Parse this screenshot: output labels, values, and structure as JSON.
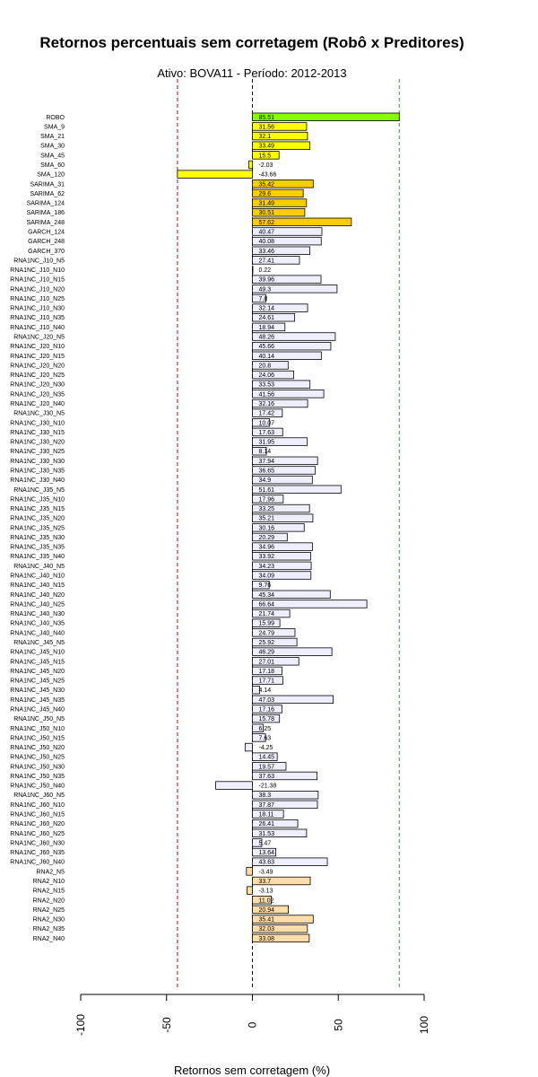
{
  "chart_data": {
    "type": "bar",
    "orientation": "horizontal",
    "title": "Retornos percentuais sem corretagem (Robô x Preditores)",
    "subtitle": "Ativo:  BOVA11  - Período: 2012-2013",
    "xlabel": "Retornos sem corretagem (%)",
    "xlim": [
      -100,
      100
    ],
    "xticks": [
      "-100",
      "-50",
      "0",
      "50",
      "100"
    ],
    "grid": false,
    "reference_lines": [
      {
        "x": -43.66,
        "color": "#cc0000",
        "style": "dashed"
      },
      {
        "x": 0,
        "color": "#000000",
        "style": "dashed"
      },
      {
        "x": 85.51,
        "color": "#00bb00",
        "style": "dashed"
      }
    ],
    "colors": {
      "robot": "#88ff00",
      "sma": "#ffff00",
      "sarima": "#ffcc00",
      "neutral": "#eeeeff",
      "rna2": "#ffddaa"
    },
    "bars": [
      {
        "label": "ROBO",
        "value": 85.51,
        "value_label": "85.51",
        "color": "#88ff00"
      },
      {
        "label": "SMA_9",
        "value": 31.56,
        "value_label": "31.56",
        "color": "#ffff00"
      },
      {
        "label": "SMA_21",
        "value": 32.1,
        "value_label": "32.1",
        "color": "#ffff00"
      },
      {
        "label": "SMA_30",
        "value": 33.49,
        "value_label": "33.49",
        "color": "#ffff00"
      },
      {
        "label": "SMA_45",
        "value": 15.5,
        "value_label": "15.5",
        "color": "#ffff00"
      },
      {
        "label": "SMA_60",
        "value": -2.03,
        "value_label": "-2.03",
        "color": "#ffff00"
      },
      {
        "label": "SMA_120",
        "value": -43.66,
        "value_label": "-43.66",
        "color": "#ffff00"
      },
      {
        "label": "SARIMA_31",
        "value": 35.42,
        "value_label": "35.42",
        "color": "#ffcc00"
      },
      {
        "label": "SARIMA_62",
        "value": 29.6,
        "value_label": "29.6",
        "color": "#ffcc00"
      },
      {
        "label": "SARIMA_124",
        "value": 31.49,
        "value_label": "31.49",
        "color": "#ffcc00"
      },
      {
        "label": "SARIMA_186",
        "value": 30.51,
        "value_label": "30.51",
        "color": "#ffcc00"
      },
      {
        "label": "SARIMA_248",
        "value": 57.62,
        "value_label": "57.62",
        "color": "#ffcc00"
      },
      {
        "label": "GARCH_124",
        "value": 40.47,
        "value_label": "40.47",
        "color": "#eeeeff"
      },
      {
        "label": "GARCH_248",
        "value": 40.08,
        "value_label": "40.08",
        "color": "#eeeeff"
      },
      {
        "label": "GARCH_370",
        "value": 33.46,
        "value_label": "33.46",
        "color": "#eeeeff"
      },
      {
        "label": "RNA1NC_J10_N5",
        "value": 27.41,
        "value_label": "27.41",
        "color": "#eeeeff"
      },
      {
        "label": "RNA1NC_J10_N10",
        "value": 0.22,
        "value_label": "0.22",
        "color": "#eeeeff"
      },
      {
        "label": "RNA1NC_J10_N15",
        "value": 39.96,
        "value_label": "39.96",
        "color": "#eeeeff"
      },
      {
        "label": "RNA1NC_J10_N20",
        "value": 49.3,
        "value_label": "49.3",
        "color": "#eeeeff"
      },
      {
        "label": "RNA1NC_J10_N25",
        "value": 7.8,
        "value_label": "7.8",
        "color": "#eeeeff"
      },
      {
        "label": "RNA1NC_J10_N30",
        "value": 32.14,
        "value_label": "32.14",
        "color": "#eeeeff"
      },
      {
        "label": "RNA1NC_J10_N35",
        "value": 24.61,
        "value_label": "24.61",
        "color": "#eeeeff"
      },
      {
        "label": "RNA1NC_J10_N40",
        "value": 18.94,
        "value_label": "18.94",
        "color": "#eeeeff"
      },
      {
        "label": "RNA1NC_J20_N5",
        "value": 48.26,
        "value_label": "48.26",
        "color": "#eeeeff"
      },
      {
        "label": "RNA1NC_J20_N10",
        "value": 45.66,
        "value_label": "45.66",
        "color": "#eeeeff"
      },
      {
        "label": "RNA1NC_J20_N15",
        "value": 40.14,
        "value_label": "40.14",
        "color": "#eeeeff"
      },
      {
        "label": "RNA1NC_J20_N20",
        "value": 20.8,
        "value_label": "20.8",
        "color": "#eeeeff"
      },
      {
        "label": "RNA1NC_J20_N25",
        "value": 24.06,
        "value_label": "24.06",
        "color": "#eeeeff"
      },
      {
        "label": "RNA1NC_J20_N30",
        "value": 33.53,
        "value_label": "33.53",
        "color": "#eeeeff"
      },
      {
        "label": "RNA1NC_J20_N35",
        "value": 41.56,
        "value_label": "41.56",
        "color": "#eeeeff"
      },
      {
        "label": "RNA1NC_J20_N40",
        "value": 32.16,
        "value_label": "32.16",
        "color": "#eeeeff"
      },
      {
        "label": "RNA1NC_J30_N5",
        "value": 17.42,
        "value_label": "17.42",
        "color": "#eeeeff"
      },
      {
        "label": "RNA1NC_J30_N10",
        "value": 10.07,
        "value_label": "10.07",
        "color": "#eeeeff"
      },
      {
        "label": "RNA1NC_J30_N15",
        "value": 17.63,
        "value_label": "17.63",
        "color": "#eeeeff"
      },
      {
        "label": "RNA1NC_J30_N20",
        "value": 31.95,
        "value_label": "31.95",
        "color": "#eeeeff"
      },
      {
        "label": "RNA1NC_J30_N25",
        "value": 8.14,
        "value_label": "8.14",
        "color": "#eeeeff"
      },
      {
        "label": "RNA1NC_J30_N30",
        "value": 37.94,
        "value_label": "37.94",
        "color": "#eeeeff"
      },
      {
        "label": "RNA1NC_J30_N35",
        "value": 36.65,
        "value_label": "36.65",
        "color": "#eeeeff"
      },
      {
        "label": "RNA1NC_J30_N40",
        "value": 34.9,
        "value_label": "34.9",
        "color": "#eeeeff"
      },
      {
        "label": "RNA1NC_J35_N5",
        "value": 51.61,
        "value_label": "51.61",
        "color": "#eeeeff"
      },
      {
        "label": "RNA1NC_J35_N10",
        "value": 17.96,
        "value_label": "17.96",
        "color": "#eeeeff"
      },
      {
        "label": "RNA1NC_J35_N15",
        "value": 33.25,
        "value_label": "33.25",
        "color": "#eeeeff"
      },
      {
        "label": "RNA1NC_J35_N20",
        "value": 35.21,
        "value_label": "35.21",
        "color": "#eeeeff"
      },
      {
        "label": "RNA1NC_J35_N25",
        "value": 30.16,
        "value_label": "30.16",
        "color": "#eeeeff"
      },
      {
        "label": "RNA1NC_J35_N30",
        "value": 20.29,
        "value_label": "20.29",
        "color": "#eeeeff"
      },
      {
        "label": "RNA1NC_J35_N35",
        "value": 34.96,
        "value_label": "34.96",
        "color": "#eeeeff"
      },
      {
        "label": "RNA1NC_J35_N40",
        "value": 33.92,
        "value_label": "33.92",
        "color": "#eeeeff"
      },
      {
        "label": "RNA1NC_J40_N5",
        "value": 34.23,
        "value_label": "34.23",
        "color": "#eeeeff"
      },
      {
        "label": "RNA1NC_J40_N10",
        "value": 34.09,
        "value_label": "34.09",
        "color": "#eeeeff"
      },
      {
        "label": "RNA1NC_J40_N15",
        "value": 9.76,
        "value_label": "9.76",
        "color": "#eeeeff"
      },
      {
        "label": "RNA1NC_J40_N20",
        "value": 45.34,
        "value_label": "45.34",
        "color": "#eeeeff"
      },
      {
        "label": "RNA1NC_J40_N25",
        "value": 66.64,
        "value_label": "66.64",
        "color": "#eeeeff"
      },
      {
        "label": "RNA1NC_J40_N30",
        "value": 21.74,
        "value_label": "21.74",
        "color": "#eeeeff"
      },
      {
        "label": "RNA1NC_J40_N35",
        "value": 15.99,
        "value_label": "15.99",
        "color": "#eeeeff"
      },
      {
        "label": "RNA1NC_J40_N40",
        "value": 24.79,
        "value_label": "24.79",
        "color": "#eeeeff"
      },
      {
        "label": "RNA1NC_J45_N5",
        "value": 25.92,
        "value_label": "25.92",
        "color": "#eeeeff"
      },
      {
        "label": "RNA1NC_J45_N10",
        "value": 46.29,
        "value_label": "46.29",
        "color": "#eeeeff"
      },
      {
        "label": "RNA1NC_J45_N15",
        "value": 27.01,
        "value_label": "27.01",
        "color": "#eeeeff"
      },
      {
        "label": "RNA1NC_J45_N20",
        "value": 17.18,
        "value_label": "17.18",
        "color": "#eeeeff"
      },
      {
        "label": "RNA1NC_J45_N25",
        "value": 17.71,
        "value_label": "17.71",
        "color": "#eeeeff"
      },
      {
        "label": "RNA1NC_J45_N30",
        "value": 4.14,
        "value_label": "4.14",
        "color": "#eeeeff"
      },
      {
        "label": "RNA1NC_J45_N35",
        "value": 47.03,
        "value_label": "47.03",
        "color": "#eeeeff"
      },
      {
        "label": "RNA1NC_J45_N40",
        "value": 17.16,
        "value_label": "17.16",
        "color": "#eeeeff"
      },
      {
        "label": "RNA1NC_J50_N5",
        "value": 15.78,
        "value_label": "15.78",
        "color": "#eeeeff"
      },
      {
        "label": "RNA1NC_J50_N10",
        "value": 6.25,
        "value_label": "6.25",
        "color": "#eeeeff"
      },
      {
        "label": "RNA1NC_J50_N15",
        "value": 7.63,
        "value_label": "7.63",
        "color": "#eeeeff"
      },
      {
        "label": "RNA1NC_J50_N20",
        "value": -4.25,
        "value_label": "-4.25",
        "color": "#eeeeff"
      },
      {
        "label": "RNA1NC_J50_N25",
        "value": 14.45,
        "value_label": "14.45",
        "color": "#eeeeff"
      },
      {
        "label": "RNA1NC_J50_N30",
        "value": 19.57,
        "value_label": "19.57",
        "color": "#eeeeff"
      },
      {
        "label": "RNA1NC_J50_N35",
        "value": 37.63,
        "value_label": "37.63",
        "color": "#eeeeff"
      },
      {
        "label": "RNA1NC_J50_N40",
        "value": -21.38,
        "value_label": "-21.38",
        "color": "#eeeeff"
      },
      {
        "label": "RNA1NC_J60_N5",
        "value": 38.3,
        "value_label": "38.3",
        "color": "#eeeeff"
      },
      {
        "label": "RNA1NC_J60_N10",
        "value": 37.87,
        "value_label": "37.87",
        "color": "#eeeeff"
      },
      {
        "label": "RNA1NC_J60_N15",
        "value": 18.11,
        "value_label": "18.11",
        "color": "#eeeeff"
      },
      {
        "label": "RNA1NC_J60_N20",
        "value": 26.41,
        "value_label": "26.41",
        "color": "#eeeeff"
      },
      {
        "label": "RNA1NC_J60_N25",
        "value": 31.53,
        "value_label": "31.53",
        "color": "#eeeeff"
      },
      {
        "label": "RNA1NC_J60_N30",
        "value": 5.47,
        "value_label": "5.47",
        "color": "#eeeeff"
      },
      {
        "label": "RNA1NC_J60_N35",
        "value": 13.64,
        "value_label": "13.64",
        "color": "#eeeeff"
      },
      {
        "label": "RNA1NC_J60_N40",
        "value": 43.63,
        "value_label": "43.63",
        "color": "#eeeeff"
      },
      {
        "label": "RNA2_N5",
        "value": -3.49,
        "value_label": "-3.49",
        "color": "#ffddaa"
      },
      {
        "label": "RNA2_N10",
        "value": 33.7,
        "value_label": "33.7",
        "color": "#ffddaa"
      },
      {
        "label": "RNA2_N15",
        "value": -3.13,
        "value_label": "-3.13",
        "color": "#ffddaa"
      },
      {
        "label": "RNA2_N20",
        "value": 11.02,
        "value_label": "11.02",
        "color": "#ffddaa"
      },
      {
        "label": "RNA2_N25",
        "value": 20.94,
        "value_label": "20.94",
        "color": "#ffddaa"
      },
      {
        "label": "RNA2_N30",
        "value": 35.41,
        "value_label": "35.41",
        "color": "#ffddaa"
      },
      {
        "label": "RNA2_N35",
        "value": 32.03,
        "value_label": "32.03",
        "color": "#ffddaa"
      },
      {
        "label": "RNA2_N40",
        "value": 33.08,
        "value_label": "33.08",
        "color": "#ffddaa"
      }
    ]
  }
}
